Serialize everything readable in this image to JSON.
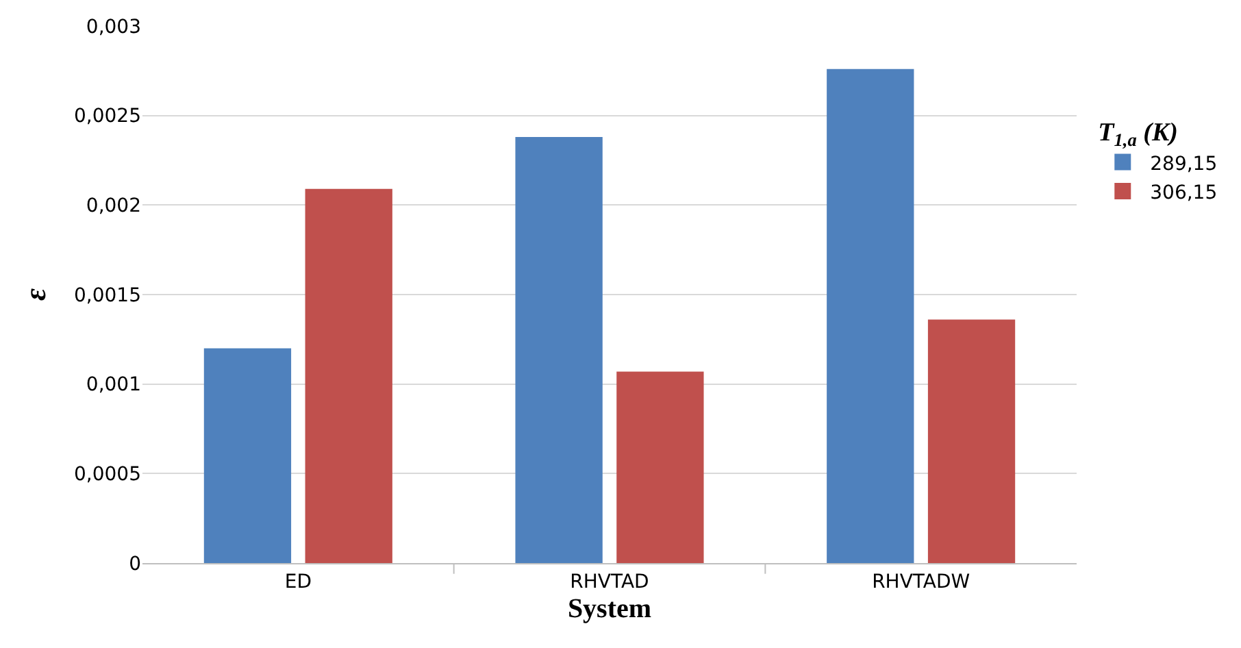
{
  "chart_data": {
    "type": "bar",
    "xlabel": "System",
    "ylabel": "ε",
    "legend_title": "T$_{1,a}$ (K)",
    "categories": [
      "ED",
      "RHVTAD",
      "RHVTADW"
    ],
    "series": [
      {
        "name": "289,15",
        "color": "#4f81bd",
        "values": [
          0.0012,
          0.00238,
          0.00276
        ]
      },
      {
        "name": "306,15",
        "color": "#c0504d",
        "values": [
          0.00209,
          0.00107,
          0.00136
        ]
      }
    ],
    "ylim": [
      0,
      0.003
    ],
    "yticks": [
      {
        "value": 0,
        "label": "0"
      },
      {
        "value": 0.0005,
        "label": "0,0005"
      },
      {
        "value": 0.001,
        "label": "0,001"
      },
      {
        "value": 0.0015,
        "label": "0,0015"
      },
      {
        "value": 0.002,
        "label": "0,002"
      },
      {
        "value": 0.0025,
        "label": "0,0025"
      },
      {
        "value": 0.003,
        "label": "0,003"
      }
    ],
    "grid": "y",
    "legend": "right"
  }
}
